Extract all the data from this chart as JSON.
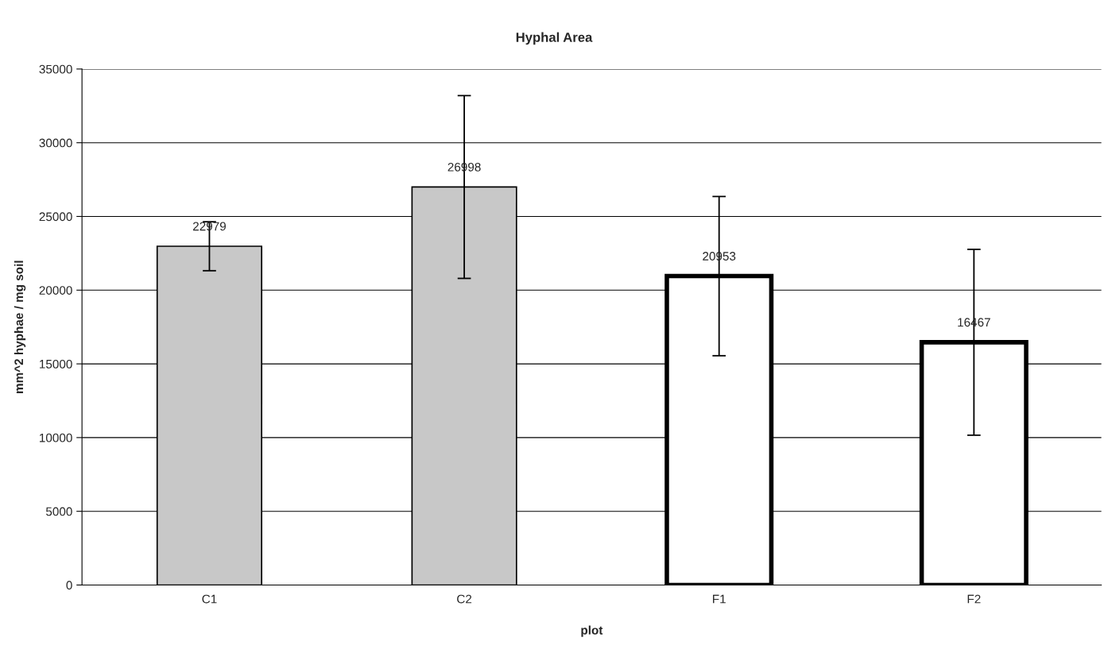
{
  "chart_data": {
    "type": "bar",
    "title": "Hyphal Area",
    "xlabel": "plot",
    "ylabel": "mm^2 hyphae / mg soil",
    "categories": [
      "C1",
      "C2",
      "F1",
      "F2"
    ],
    "values": [
      22979,
      26998,
      20953,
      16467
    ],
    "errors": [
      1660,
      6200,
      5400,
      6300
    ],
    "colors": [
      "#c8c8c8",
      "#c8c8c8",
      "#ffffff",
      "#ffffff"
    ],
    "ylim": [
      0,
      35000
    ],
    "yticks": [
      0,
      5000,
      10000,
      15000,
      20000,
      25000,
      30000,
      35000
    ],
    "grid": "y",
    "data_labels": true
  }
}
